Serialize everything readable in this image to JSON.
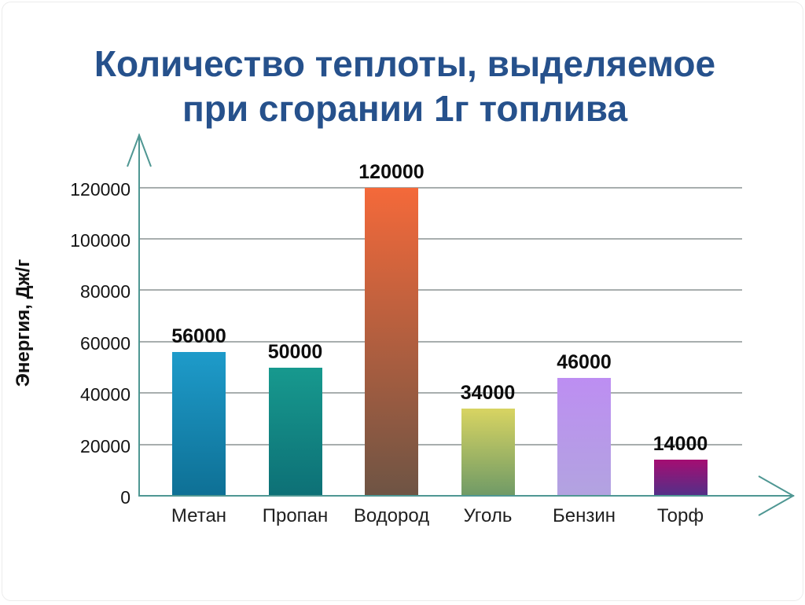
{
  "title": {
    "line1": "Количество теплоты, выделяемое",
    "line2": "при сгорании 1г топлива"
  },
  "chart_data": {
    "type": "bar",
    "title": "Количество теплоты, выделяемое при сгорании 1г топлива",
    "xlabel": "",
    "ylabel": "Энергия, Дж/г",
    "categories": [
      "Метан",
      "Пропан",
      "Водород",
      "Уголь",
      "Бензин",
      "Торф"
    ],
    "values": [
      56000,
      50000,
      120000,
      34000,
      46000,
      14000
    ],
    "ylim": [
      0,
      130000
    ],
    "yticks": [
      0,
      20000,
      40000,
      60000,
      80000,
      100000,
      120000
    ],
    "grid": true,
    "legend": false,
    "bar_gradients": [
      {
        "top": "#1e9bca",
        "bottom": "#0e7095"
      },
      {
        "top": "#17998e",
        "bottom": "#0d7076"
      },
      {
        "top": "#f4693a",
        "bottom": "#6e5444"
      },
      {
        "top": "#d8d462",
        "bottom": "#6f9a66"
      },
      {
        "top": "#bd8ef2",
        "bottom": "#b2a3e0"
      },
      {
        "top": "#a50d72",
        "bottom": "#523088"
      }
    ],
    "colors": {
      "axis": "#4f9793",
      "grid": "#a8aeae",
      "title": "#26518c",
      "tick_label": "#141414",
      "value_label": "#0d0d0d"
    }
  }
}
